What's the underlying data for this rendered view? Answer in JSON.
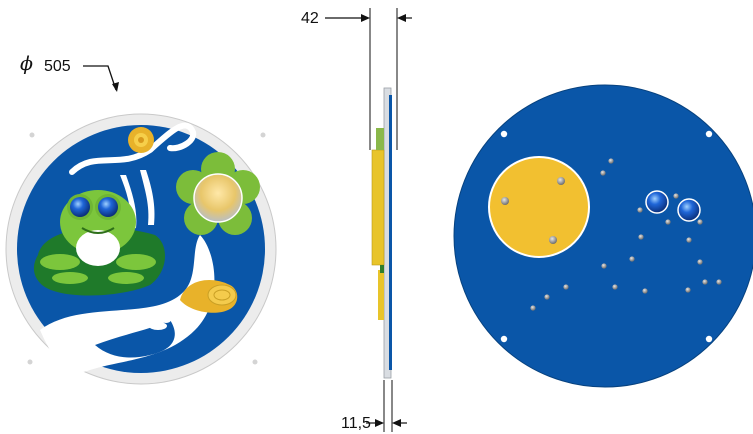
{
  "dimensions": {
    "diameter_symbol": "ϕ",
    "diameter_value": "505",
    "thickness_total": "42",
    "thickness_panel": "11,5"
  },
  "views": [
    "front-view",
    "side-view",
    "back-view"
  ],
  "colors": {
    "panel_blue": "#0a56a8",
    "rim_white": "#eeeeee",
    "frog_green": "#7cc63c",
    "lily_pad_green": "#1f7a2a",
    "flower_green": "#7cbd3a",
    "yellow": "#f2c030",
    "bolt_grey": "#9a9a9a",
    "eye_blue": "#1a5ad0"
  },
  "icons": [
    "frog-icon",
    "flower-icon",
    "snail-icon",
    "bee-icon",
    "sun-icon",
    "lily-pad-icon"
  ]
}
